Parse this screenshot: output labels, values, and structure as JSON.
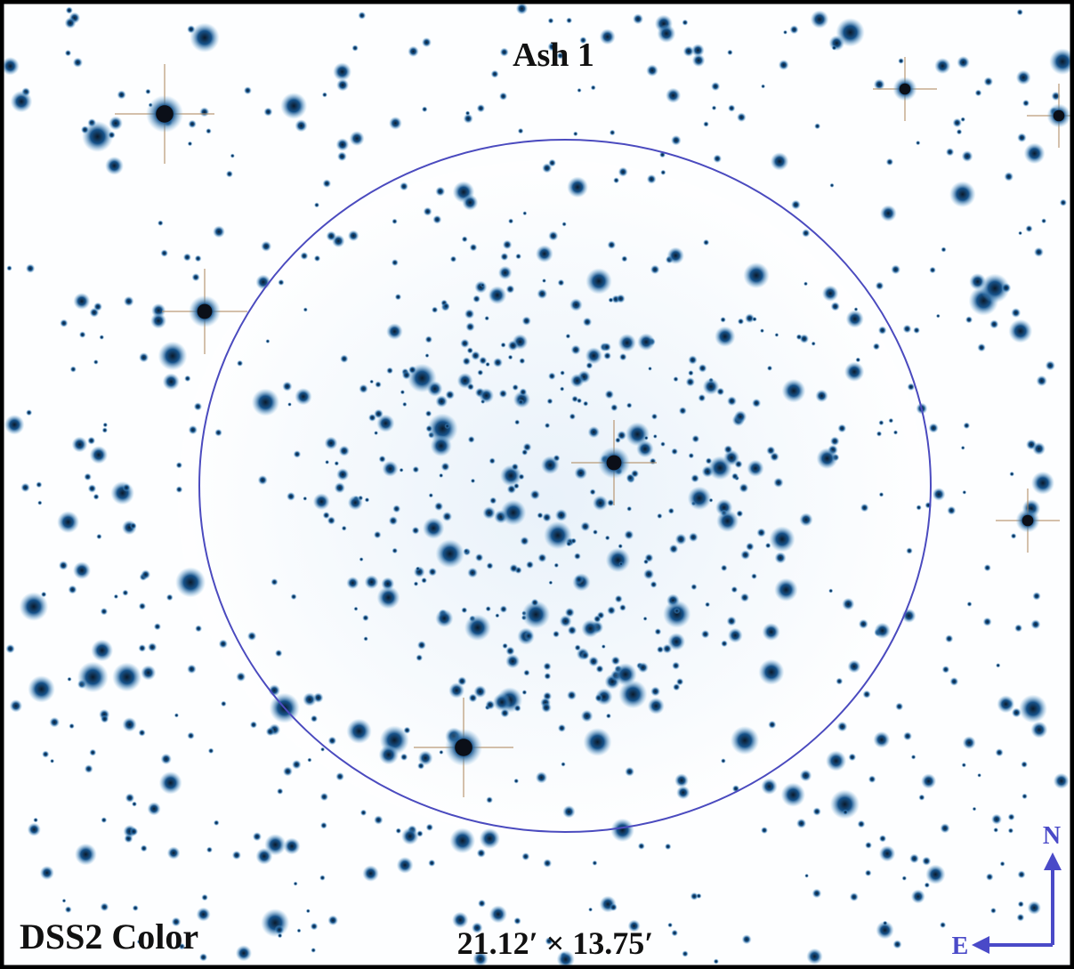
{
  "title": "Ash 1",
  "survey": "DSS2 Color",
  "field_size": "21.12′ × 13.75′",
  "compass": {
    "north": "N",
    "east": "E"
  }
}
